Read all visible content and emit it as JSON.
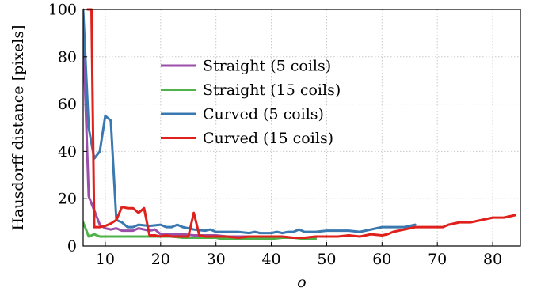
{
  "chart_data": {
    "type": "line",
    "title": "",
    "xlabel": "o",
    "ylabel": "Hausdorff distance [pixels]",
    "xlim": [
      6,
      85
    ],
    "ylim": [
      0,
      100
    ],
    "x_ticks": [
      10,
      20,
      30,
      40,
      50,
      60,
      70,
      80
    ],
    "y_ticks": [
      0,
      20,
      40,
      60,
      80,
      100
    ],
    "grid": true,
    "legend_position": "upper-center",
    "series": [
      {
        "name": "Straight (5 coils)",
        "color": "#9b4fa8",
        "x": [
          6,
          7,
          8,
          9,
          10,
          11,
          12,
          13,
          14,
          15,
          16,
          17,
          18,
          19,
          20,
          22,
          24,
          26,
          28,
          30,
          32,
          34,
          36,
          38,
          40,
          42,
          44,
          46,
          48
        ],
        "y": [
          90,
          21,
          15,
          9,
          7.5,
          7,
          7.5,
          6.5,
          6.5,
          6.5,
          7.5,
          7,
          6.5,
          7,
          5,
          5,
          5,
          4.5,
          4.5,
          4.5,
          4,
          4,
          4,
          4,
          4,
          3.5,
          3.5,
          3.5,
          3.5
        ]
      },
      {
        "name": "Straight (15 coils)",
        "color": "#4fb34a",
        "x": [
          6,
          7,
          8,
          9,
          10,
          12,
          14,
          16,
          18,
          20,
          22,
          24,
          26,
          28,
          30,
          31,
          32,
          34,
          36,
          38,
          40,
          42,
          44,
          46,
          48
        ],
        "y": [
          10,
          4,
          5,
          4,
          4,
          4,
          4,
          4,
          4,
          4,
          4,
          3.5,
          3.5,
          3.5,
          3.5,
          3,
          3,
          3,
          3,
          3,
          3,
          3.5,
          3.5,
          3,
          3
        ]
      },
      {
        "name": "Curved (5 coils)",
        "color": "#3a78b0",
        "x": [
          6,
          7,
          8,
          9,
          10,
          11,
          12,
          13,
          14,
          15,
          16,
          18,
          20,
          21,
          22,
          23,
          24,
          26,
          28,
          29,
          30,
          32,
          34,
          36,
          37,
          38,
          40,
          41,
          42,
          43,
          44,
          45,
          46,
          48,
          50,
          52,
          54,
          56,
          58,
          60,
          62,
          64,
          66
        ],
        "y": [
          100,
          50,
          37,
          40,
          55,
          53,
          11,
          10,
          8,
          8,
          9,
          8.5,
          9,
          8,
          8,
          9,
          8,
          7,
          6.5,
          7,
          6,
          6,
          6,
          5.5,
          6,
          5.5,
          5.5,
          6,
          5.5,
          6,
          6,
          7,
          6,
          6,
          6.5,
          6.5,
          6.5,
          6,
          7,
          8,
          8,
          8,
          9
        ]
      },
      {
        "name": "Curved (15 coils)",
        "color": "#e0201b",
        "x": [
          6.8,
          7.5,
          8,
          9,
          10,
          11,
          12,
          13,
          14,
          15,
          16,
          17,
          18,
          19,
          20,
          21,
          22,
          24,
          25,
          26,
          27,
          28,
          30,
          32,
          34,
          36,
          38,
          40,
          42,
          44,
          46,
          48,
          50,
          52,
          54,
          56,
          58,
          60,
          61,
          62,
          64,
          66,
          68,
          70,
          71,
          72,
          74,
          76,
          78,
          80,
          82,
          84
        ],
        "y": [
          100,
          100,
          8,
          8,
          8.5,
          9.5,
          11,
          16.5,
          16,
          16,
          14,
          16,
          4.5,
          4.5,
          4,
          4.5,
          4,
          4,
          4,
          14,
          4.5,
          4,
          4,
          4,
          3.5,
          4,
          4,
          4,
          4,
          3.5,
          3.5,
          4,
          4,
          4,
          4.5,
          4,
          5,
          4.5,
          5,
          6,
          7,
          8,
          8,
          8,
          8,
          9,
          10,
          10,
          11,
          12,
          12,
          13
        ]
      }
    ]
  }
}
